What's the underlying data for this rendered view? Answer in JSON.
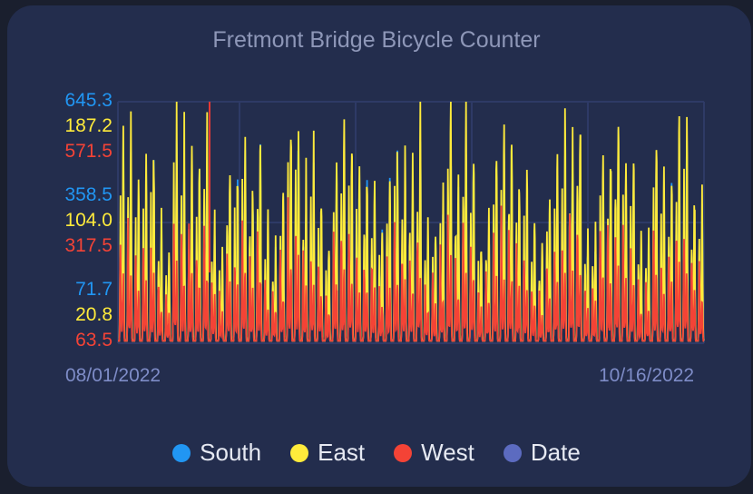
{
  "chart_data": {
    "type": "line",
    "title": "Fretmont Bridge Bicycle Counter",
    "x_start": "08/01/2022",
    "x_end": "10/16/2022",
    "x_tick_labels": [
      "08/01/2022",
      "10/16/2022"
    ],
    "y_axes": [
      {
        "series": "South",
        "color": "#2196f3",
        "ticks": [
          "71.7",
          "358.5",
          "645.3"
        ]
      },
      {
        "series": "East",
        "color": "#ffeb3b",
        "ticks": [
          "20.8",
          "104.0",
          "187.2"
        ]
      },
      {
        "series": "West",
        "color": "#f44336",
        "ticks": [
          "63.5",
          "317.5",
          "571.5"
        ]
      }
    ],
    "series": [
      {
        "name": "South",
        "color": "#2196f3"
      },
      {
        "name": "East",
        "color": "#ffeb3b"
      },
      {
        "name": "West",
        "color": "#f44336"
      },
      {
        "name": "Date",
        "color": "#5c6bc0"
      }
    ],
    "legend_position": "bottom",
    "grid": true
  }
}
